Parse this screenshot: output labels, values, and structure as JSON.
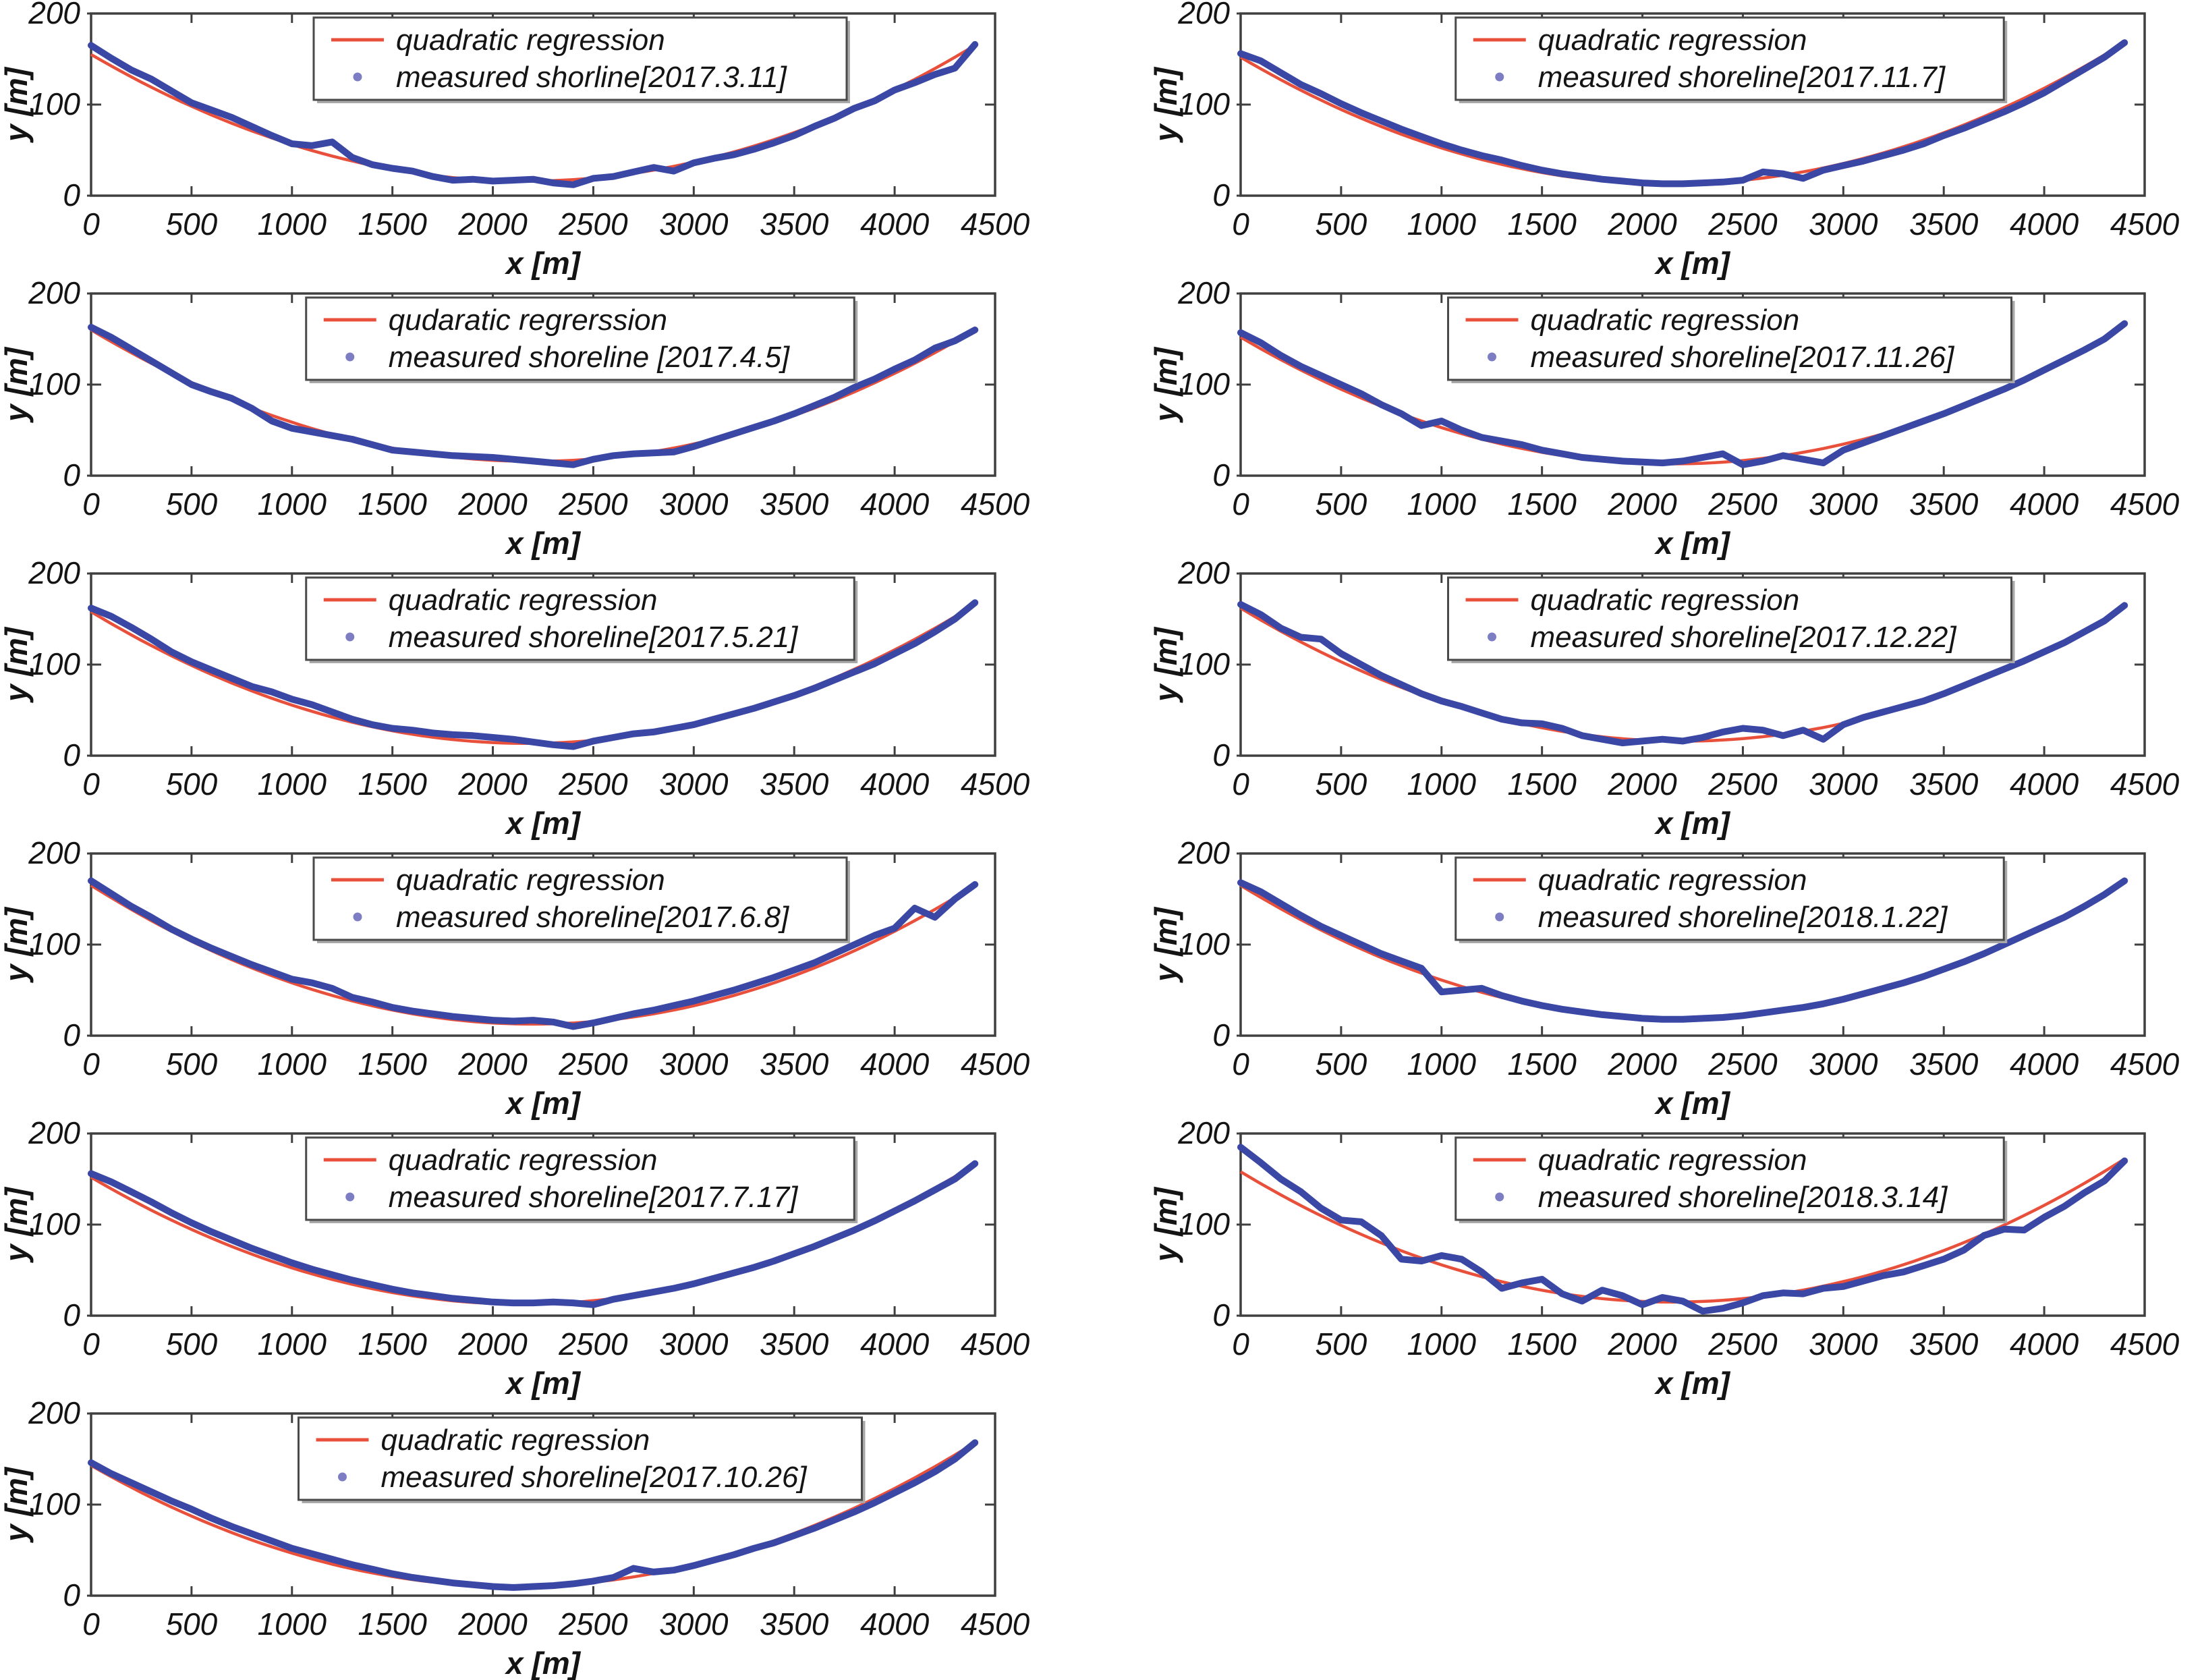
{
  "figure": {
    "kind": "small-multiples",
    "columns": 2,
    "rows": 6,
    "panel_count": 11
  },
  "colors": {
    "background": "#ffffff",
    "axis": "#3f3f3f",
    "text": "#141414",
    "regression_line": "#e8503c",
    "measured_line": "#3a47a5",
    "legend_marker_dot": "#7d7dc4",
    "legend_border": "#4a4a4a",
    "legend_shadow": "#a8a8a8",
    "legend_fill": "#ffffff"
  },
  "axes": {
    "xlabel": "x [m]",
    "ylabel": "y [m]",
    "xlim": [
      0,
      4500
    ],
    "ylim": [
      0,
      200
    ],
    "xticks": [
      0,
      500,
      1000,
      1500,
      2000,
      2500,
      3000,
      3500,
      4000,
      4500
    ],
    "yticks": [
      0,
      100,
      200
    ],
    "grid": false,
    "box": true,
    "legend_position": "top-center-inside"
  },
  "chart_data": [
    {
      "type": "line+scatter",
      "date": "2017.3.11",
      "legend": [
        "quadratic regression",
        "measured shorline[2017.3.11]"
      ],
      "regression_anchors": {
        "x": [
          0,
          2200,
          4400
        ],
        "y": [
          155,
          16,
          165
        ]
      },
      "measured_x_start": 0,
      "measured_x_step": 100,
      "measured_y": [
        165,
        151,
        138,
        128,
        115,
        102,
        94,
        86,
        76,
        66,
        57,
        55,
        59,
        42,
        34,
        30,
        27,
        21,
        17,
        18,
        16,
        17,
        18,
        14,
        12,
        19,
        21,
        26,
        31,
        27,
        36,
        41,
        45,
        51,
        58,
        66,
        76,
        85,
        96,
        104,
        116,
        124,
        133,
        140,
        166
      ]
    },
    {
      "type": "line+scatter",
      "date": "2017.11.7",
      "legend": [
        "quadratic regression",
        "measured shoreline[2017.11.7]"
      ],
      "regression_anchors": {
        "x": [
          0,
          2200,
          4400
        ],
        "y": [
          152,
          13,
          168
        ]
      },
      "measured_x_start": 0,
      "measured_x_step": 100,
      "measured_y": [
        156,
        148,
        135,
        122,
        112,
        101,
        91,
        82,
        73,
        65,
        57,
        50,
        44,
        39,
        33,
        28,
        24,
        21,
        18,
        16,
        14,
        13,
        13,
        14,
        15,
        17,
        26,
        24,
        19,
        28,
        33,
        38,
        44,
        50,
        57,
        66,
        74,
        83,
        92,
        102,
        113,
        126,
        139,
        152,
        168
      ]
    },
    {
      "type": "line+scatter",
      "date": "2017.4.5",
      "legend": [
        "qudaratic regrerssion",
        "measured shoreline [2017.4.5]"
      ],
      "regression_anchors": {
        "x": [
          0,
          2300,
          4400
        ],
        "y": [
          160,
          16,
          160
        ]
      },
      "measured_x_start": 0,
      "measured_x_step": 100,
      "measured_y": [
        163,
        152,
        139,
        126,
        113,
        100,
        92,
        85,
        74,
        60,
        52,
        48,
        44,
        40,
        34,
        28,
        26,
        24,
        22,
        21,
        20,
        18,
        16,
        14,
        12,
        18,
        22,
        24,
        25,
        26,
        32,
        39,
        46,
        53,
        60,
        68,
        77,
        86,
        97,
        106,
        117,
        127,
        140,
        148,
        160
      ]
    },
    {
      "type": "line+scatter",
      "date": "2017.11.26",
      "legend": [
        "quadratic regression",
        "measured shoreline[2017.11.26]"
      ],
      "regression_anchors": {
        "x": [
          0,
          2200,
          4400
        ],
        "y": [
          152,
          13,
          165
        ]
      },
      "measured_x_start": 0,
      "measured_x_step": 100,
      "measured_y": [
        157,
        146,
        132,
        120,
        110,
        100,
        90,
        78,
        68,
        55,
        60,
        50,
        42,
        38,
        34,
        28,
        24,
        20,
        18,
        16,
        15,
        14,
        16,
        20,
        24,
        12,
        16,
        22,
        18,
        14,
        28,
        36,
        44,
        52,
        60,
        68,
        77,
        86,
        95,
        105,
        116,
        127,
        138,
        150,
        167
      ]
    },
    {
      "type": "line+scatter",
      "date": "2017.5.21",
      "legend": [
        "quadratic regression",
        "measured shoreline[2017.5.21]"
      ],
      "regression_anchors": {
        "x": [
          0,
          2300,
          4400
        ],
        "y": [
          158,
          14,
          166
        ]
      },
      "measured_x_start": 0,
      "measured_x_step": 100,
      "measured_y": [
        162,
        153,
        141,
        128,
        114,
        103,
        94,
        85,
        76,
        70,
        62,
        56,
        48,
        40,
        34,
        30,
        28,
        25,
        23,
        22,
        20,
        18,
        15,
        12,
        10,
        16,
        20,
        24,
        26,
        30,
        34,
        40,
        46,
        52,
        59,
        66,
        74,
        83,
        92,
        101,
        112,
        123,
        136,
        150,
        168
      ]
    },
    {
      "type": "line+scatter",
      "date": "2017.12.22",
      "legend": [
        "quadratic regression",
        "measured shoreline[2017.12.22]"
      ],
      "regression_anchors": {
        "x": [
          0,
          2250,
          4400
        ],
        "y": [
          162,
          16,
          163
        ]
      },
      "measured_x_start": 0,
      "measured_x_step": 100,
      "measured_y": [
        166,
        155,
        140,
        130,
        128,
        112,
        100,
        88,
        78,
        68,
        60,
        54,
        47,
        40,
        36,
        35,
        30,
        22,
        18,
        14,
        16,
        18,
        16,
        20,
        26,
        30,
        28,
        22,
        28,
        18,
        34,
        42,
        48,
        54,
        60,
        68,
        77,
        86,
        95,
        104,
        114,
        124,
        136,
        148,
        165
      ]
    },
    {
      "type": "line+scatter",
      "date": "2017.6.8",
      "legend": [
        "quadratic regression",
        "measured shoreline[2017.6.8]"
      ],
      "regression_anchors": {
        "x": [
          0,
          2300,
          4400
        ],
        "y": [
          165,
          13,
          165
        ]
      },
      "measured_x_start": 0,
      "measured_x_step": 100,
      "measured_y": [
        170,
        156,
        142,
        130,
        117,
        106,
        96,
        87,
        78,
        70,
        62,
        58,
        52,
        42,
        37,
        31,
        27,
        24,
        21,
        19,
        17,
        16,
        17,
        15,
        10,
        14,
        19,
        24,
        28,
        33,
        38,
        44,
        50,
        57,
        64,
        72,
        80,
        90,
        100,
        110,
        118,
        140,
        130,
        150,
        166
      ]
    },
    {
      "type": "line+scatter",
      "date": "2018.1.22",
      "legend": [
        "quadratic regression",
        "measured shoreline[2018.1.22]"
      ],
      "regression_anchors": {
        "x": [
          0,
          2250,
          4400
        ],
        "y": [
          165,
          18,
          170
        ]
      },
      "measured_x_start": 0,
      "measured_x_step": 100,
      "measured_y": [
        168,
        158,
        145,
        132,
        120,
        110,
        100,
        90,
        82,
        74,
        48,
        50,
        52,
        44,
        38,
        33,
        29,
        26,
        23,
        21,
        19,
        18,
        18,
        19,
        20,
        22,
        25,
        28,
        31,
        35,
        40,
        46,
        52,
        58,
        65,
        73,
        81,
        90,
        100,
        110,
        120,
        130,
        142,
        155,
        170
      ]
    },
    {
      "type": "line+scatter",
      "date": "2017.7.17",
      "legend": [
        "quadratic regression",
        "measured shoreline[2017.7.17]"
      ],
      "regression_anchors": {
        "x": [
          0,
          2250,
          4400
        ],
        "y": [
          152,
          13,
          166
        ]
      },
      "measured_x_start": 0,
      "measured_x_step": 100,
      "measured_y": [
        156,
        147,
        136,
        125,
        113,
        102,
        92,
        83,
        74,
        66,
        58,
        51,
        45,
        39,
        34,
        29,
        25,
        22,
        19,
        17,
        15,
        14,
        14,
        15,
        14,
        12,
        18,
        22,
        26,
        30,
        35,
        41,
        47,
        53,
        60,
        68,
        76,
        85,
        94,
        104,
        115,
        126,
        138,
        150,
        167
      ]
    },
    {
      "type": "line+scatter",
      "date": "2018.3.14",
      "legend": [
        "quadratic regression",
        "measured shoreline[2018.3.14]"
      ],
      "regression_anchors": {
        "x": [
          0,
          2200,
          4400
        ],
        "y": [
          158,
          15,
          172
        ]
      },
      "measured_x_start": 0,
      "measured_x_step": 100,
      "measured_y": [
        185,
        168,
        150,
        136,
        118,
        105,
        103,
        88,
        62,
        60,
        66,
        62,
        48,
        30,
        36,
        40,
        24,
        16,
        28,
        22,
        12,
        20,
        16,
        5,
        8,
        14,
        22,
        25,
        24,
        30,
        32,
        38,
        44,
        48,
        55,
        62,
        72,
        88,
        95,
        94,
        108,
        120,
        135,
        148,
        170
      ]
    },
    {
      "type": "line+scatter",
      "date": "2017.10.26",
      "legend": [
        "quadratic regression",
        "measured shoreline[2017.10.26]"
      ],
      "regression_anchors": {
        "x": [
          0,
          2100,
          4400
        ],
        "y": [
          143,
          10,
          168
        ]
      },
      "measured_x_start": 0,
      "measured_x_step": 100,
      "measured_y": [
        146,
        134,
        124,
        114,
        104,
        95,
        85,
        76,
        68,
        60,
        52,
        46,
        40,
        34,
        29,
        24,
        20,
        17,
        14,
        12,
        10,
        9,
        10,
        11,
        13,
        16,
        20,
        30,
        26,
        28,
        33,
        39,
        45,
        52,
        58,
        66,
        74,
        83,
        92,
        102,
        113,
        124,
        136,
        150,
        168
      ]
    }
  ]
}
